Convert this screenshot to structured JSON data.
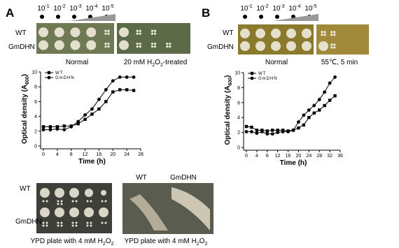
{
  "panels": [
    {
      "label": "A",
      "dilutions": [
        [
          "10",
          "-1"
        ],
        [
          "10",
          "-2"
        ],
        [
          "10",
          "-3"
        ],
        [
          "10",
          "-4"
        ],
        [
          "10",
          "-5"
        ]
      ],
      "rows": [
        "WT",
        "GmDHN"
      ],
      "plates": [
        [
          "Normal"
        ],
        [
          "20 mM H",
          "2",
          "O",
          "2",
          "-treated"
        ]
      ]
    },
    {
      "label": "B",
      "dilutions": [
        [
          "10",
          "-1"
        ],
        [
          "10",
          "-2"
        ],
        [
          "10",
          "-3"
        ],
        [
          "10",
          "-4"
        ],
        [
          "10",
          "-5"
        ]
      ],
      "rows": [
        "WT",
        "GmDHN"
      ],
      "plates": [
        [
          "Normal"
        ],
        [
          "55℃, 5 min"
        ]
      ]
    }
  ],
  "chart_data": [
    {
      "type": "line",
      "x_label": "Time (h)",
      "y_label": [
        "Optical density (A",
        "600",
        ")"
      ],
      "x": [
        0,
        2,
        4,
        6,
        8,
        10,
        12,
        14,
        16,
        18,
        20,
        22,
        24,
        26
      ],
      "series": [
        {
          "name": "WT",
          "color": "#000000",
          "marker": "square",
          "values": [
            2.6,
            2.6,
            2.6,
            2.7,
            2.7,
            3.0,
            3.6,
            4.3,
            5.0,
            6.0,
            7.3,
            7.6,
            7.6,
            7.5
          ]
        },
        {
          "name": "GmDHN",
          "color": "#000000",
          "marker": "circle",
          "values": [
            2.2,
            2.2,
            2.3,
            2.2,
            2.6,
            3.3,
            4.2,
            5.0,
            6.3,
            7.6,
            8.8,
            9.3,
            9.3,
            9.3
          ]
        }
      ],
      "xlim": [
        0,
        28
      ],
      "xticks": [
        0,
        4,
        8,
        12,
        16,
        20,
        24,
        28
      ],
      "ylim": [
        0,
        10
      ],
      "yticks": [
        0,
        2,
        4,
        6,
        8,
        10
      ],
      "legend": "upper left"
    },
    {
      "type": "line",
      "x_label": "Time (h)",
      "y_label": [
        "Optical density (A",
        "600",
        ")"
      ],
      "x": [
        0,
        2,
        4,
        6,
        8,
        10,
        12,
        14,
        16,
        18,
        20,
        22,
        24,
        26,
        28,
        30,
        32,
        34
      ],
      "series": [
        {
          "name": "WT",
          "color": "#000000",
          "marker": "square",
          "values": [
            2.8,
            2.7,
            2.3,
            2.3,
            2.2,
            2.3,
            2.3,
            2.3,
            2.2,
            2.3,
            2.6,
            3.0,
            4.0,
            4.6,
            5.0,
            5.6,
            6.3,
            6.9
          ]
        },
        {
          "name": "GmDHN",
          "color": "#000000",
          "marker": "circle",
          "values": [
            2.1,
            2.1,
            1.9,
            2.1,
            1.8,
            1.8,
            2.0,
            2.1,
            2.1,
            2.3,
            3.4,
            4.3,
            5.0,
            5.6,
            6.4,
            7.4,
            8.6,
            9.4
          ]
        }
      ],
      "xlim": [
        0,
        36
      ],
      "xticks": [
        0,
        4,
        8,
        12,
        16,
        20,
        24,
        28,
        32,
        36
      ],
      "ylim": [
        0,
        10
      ],
      "yticks": [
        0,
        2,
        4,
        6,
        8,
        10
      ],
      "legend": "upper left"
    }
  ],
  "bottom": {
    "left": {
      "rows": [
        "WT",
        "GmDHN"
      ],
      "caption": [
        "YPD plate with 4 mM H",
        "2",
        "O",
        "2"
      ]
    },
    "right": {
      "columns": [
        "WT",
        "GmDHN"
      ],
      "caption": [
        "YPD plate with 4 mM H",
        "2",
        "O",
        "2"
      ]
    }
  }
}
